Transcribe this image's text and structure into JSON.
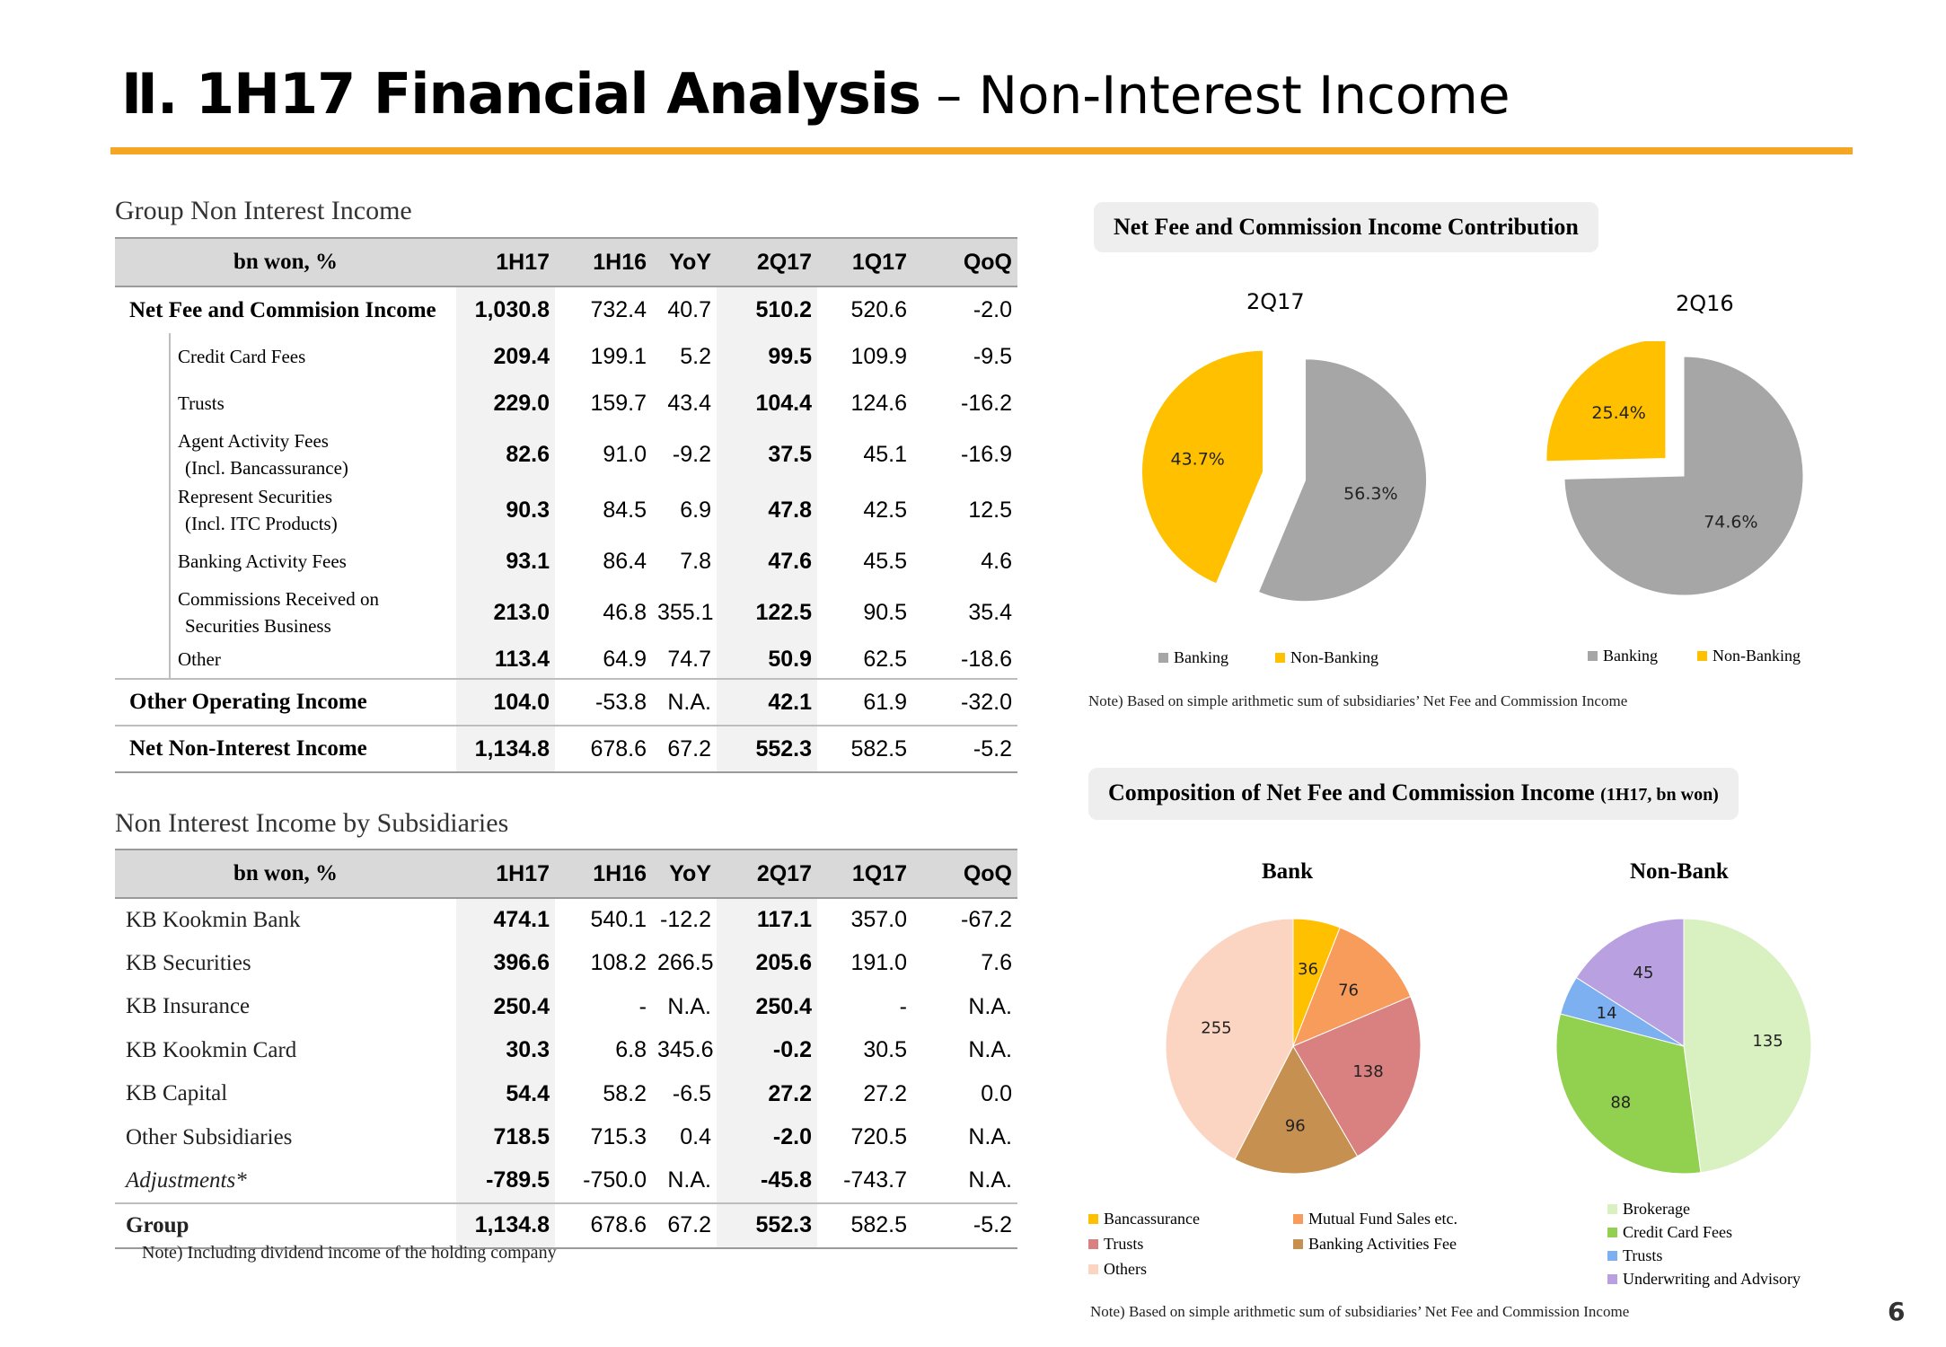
{
  "header": {
    "title_bold": "Ⅱ. 1H17 Financial Analysis",
    "title_rest": "– Non-Interest Income"
  },
  "group_table": {
    "title": "Group Non Interest Income",
    "columns": [
      "bn won, %",
      "1H17",
      "1H16",
      "YoY",
      "2Q17",
      "1Q17",
      "QoQ"
    ],
    "rows": [
      {
        "label": "Net Fee and Commision Income",
        "values": [
          "1,030.8",
          "732.4",
          "40.7",
          "510.2",
          "520.6",
          "-2.0"
        ]
      },
      {
        "label": "Credit Card Fees",
        "values": [
          "209.4",
          "199.1",
          "5.2",
          "99.5",
          "109.9",
          "-9.5"
        ]
      },
      {
        "label": "Trusts",
        "values": [
          "229.0",
          "159.7",
          "43.4",
          "104.4",
          "124.6",
          "-16.2"
        ]
      },
      {
        "label": "Agent Activity Fees",
        "label2": "(Incl. Bancassurance)",
        "values": [
          "82.6",
          "91.0",
          "-9.2",
          "37.5",
          "45.1",
          "-16.9"
        ]
      },
      {
        "label": "Represent Securities",
        "label2": "(Incl. ITC Products)",
        "values": [
          "90.3",
          "84.5",
          "6.9",
          "47.8",
          "42.5",
          "12.5"
        ]
      },
      {
        "label": "Banking Activity Fees",
        "values": [
          "93.1",
          "86.4",
          "7.8",
          "47.6",
          "45.5",
          "4.6"
        ]
      },
      {
        "label": "Commissions Received on",
        "label2": "Securities Business",
        "values": [
          "213.0",
          "46.8",
          "355.1",
          "122.5",
          "90.5",
          "35.4"
        ]
      },
      {
        "label": "Other",
        "values": [
          "113.4",
          "64.9",
          "74.7",
          "50.9",
          "62.5",
          "-18.6"
        ]
      },
      {
        "label": "Other Operating Income",
        "values": [
          "104.0",
          "-53.8",
          "N.A.",
          "42.1",
          "61.9",
          "-32.0"
        ]
      },
      {
        "label": "Net Non-Interest Income",
        "values": [
          "1,134.8",
          "678.6",
          "67.2",
          "552.3",
          "582.5",
          "-5.2"
        ]
      }
    ]
  },
  "subs_table": {
    "title": "Non Interest Income by Subsidiaries",
    "columns": [
      "bn won, %",
      "1H17",
      "1H16",
      "YoY",
      "2Q17",
      "1Q17",
      "QoQ"
    ],
    "rows": [
      {
        "label": "KB Kookmin Bank",
        "values": [
          "474.1",
          "540.1",
          "-12.2",
          "117.1",
          "357.0",
          "-67.2"
        ]
      },
      {
        "label": "KB Securities",
        "values": [
          "396.6",
          "108.2",
          "266.5",
          "205.6",
          "191.0",
          "7.6"
        ]
      },
      {
        "label": "KB Insurance",
        "values": [
          "250.4",
          "-",
          "N.A.",
          "250.4",
          "-",
          "N.A."
        ]
      },
      {
        "label": "KB Kookmin Card",
        "values": [
          "30.3",
          "6.8",
          "345.6",
          "-0.2",
          "30.5",
          "N.A."
        ]
      },
      {
        "label": "KB Capital",
        "values": [
          "54.4",
          "58.2",
          "-6.5",
          "27.2",
          "27.2",
          "0.0"
        ]
      },
      {
        "label": "Other Subsidiaries",
        "values": [
          "718.5",
          "715.3",
          "0.4",
          "-2.0",
          "720.5",
          "N.A."
        ]
      },
      {
        "label": "Adjustments*",
        "values": [
          "-789.5",
          "-750.0",
          "N.A.",
          "-45.8",
          "-743.7",
          "N.A."
        ]
      },
      {
        "label": "Group",
        "values": [
          "1,134.8",
          "678.6",
          "67.2",
          "552.3",
          "582.5",
          "-5.2"
        ]
      }
    ],
    "note": "Note) Including dividend income of the holding company"
  },
  "contribution_panel": {
    "title": "Net Fee and Commission Income Contribution",
    "note": "Note) Based on simple arithmetic sum of subsidiaries’ Net Fee and Commission Income"
  },
  "composition_panel": {
    "title": "Composition of Net Fee and Commission Income",
    "title_suffix": "(1H17, bn won)",
    "note": "Note) Based on simple arithmetic sum of subsidiaries’ Net Fee and Commission Income"
  },
  "chart_data": [
    {
      "type": "pie",
      "title": "2Q17",
      "slices": [
        {
          "label": "Banking",
          "value": 56.3,
          "display": "56.3%",
          "color": "#a6a6a6"
        },
        {
          "label": "Non-Banking",
          "value": 43.7,
          "display": "43.7%",
          "color": "#ffc000"
        }
      ],
      "legend": [
        "Banking",
        "Non-Banking"
      ],
      "legend_placement": "bottom"
    },
    {
      "type": "pie",
      "title": "2Q16",
      "slices": [
        {
          "label": "Banking",
          "value": 74.6,
          "display": "74.6%",
          "color": "#a6a6a6"
        },
        {
          "label": "Non-Banking",
          "value": 25.4,
          "display": "25.4%",
          "color": "#ffc000"
        }
      ],
      "legend": [
        "Banking",
        "Non-Banking"
      ],
      "legend_placement": "bottom"
    },
    {
      "type": "pie",
      "title": "Bank",
      "slices": [
        {
          "label": "Bancassurance",
          "value": 36,
          "display": "36",
          "color": "#ffc000"
        },
        {
          "label": "Mutual Fund Sales etc.",
          "value": 76,
          "display": "76",
          "color": "#f79c5a"
        },
        {
          "label": "Trusts",
          "value": 138,
          "display": "138",
          "color": "#d98080"
        },
        {
          "label": "Banking Activities Fee",
          "value": 96,
          "display": "96",
          "color": "#c69050"
        },
        {
          "label": "Others",
          "value": 255,
          "display": "255",
          "color": "#fcd5c2"
        }
      ],
      "legend": [
        "Bancassurance",
        "Mutual Fund Sales etc.",
        "Trusts",
        "Banking Activities Fee",
        "Others"
      ],
      "legend_placement": "bottom"
    },
    {
      "type": "pie",
      "title": "Non-Bank",
      "slices": [
        {
          "label": "Brokerage",
          "value": 135,
          "display": "135",
          "color": "#d9f0c1"
        },
        {
          "label": "Credit Card Fees",
          "value": 88,
          "display": "88",
          "color": "#92d050"
        },
        {
          "label": "Trusts",
          "value": 14,
          "display": "14",
          "color": "#7cb0f0"
        },
        {
          "label": "Underwriting and Advisory",
          "value": 45,
          "display": "45",
          "color": "#b9a0e0"
        }
      ],
      "legend": [
        "Brokerage",
        "Credit Card Fees",
        "Trusts",
        "Underwriting and Advisory"
      ],
      "legend_placement": "bottom"
    }
  ],
  "page_number": "6"
}
